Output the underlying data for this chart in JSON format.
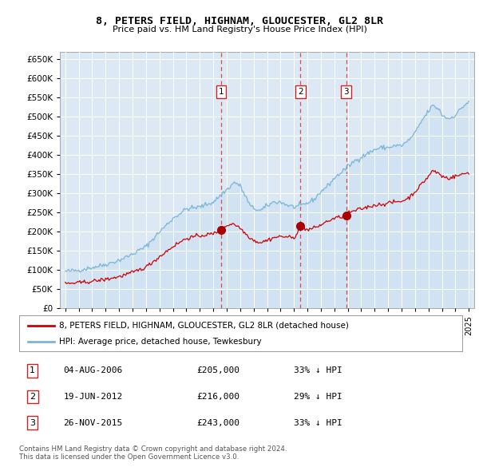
{
  "title": "8, PETERS FIELD, HIGHNAM, GLOUCESTER, GL2 8LR",
  "subtitle": "Price paid vs. HM Land Registry's House Price Index (HPI)",
  "yticks": [
    0,
    50000,
    100000,
    150000,
    200000,
    250000,
    300000,
    350000,
    400000,
    450000,
    500000,
    550000,
    600000,
    650000
  ],
  "xlim_start": 1994.6,
  "xlim_end": 2025.4,
  "ylim": [
    0,
    670000
  ],
  "hpi_color": "#7ab5d8",
  "hpi_fill_color": "#c8dff0",
  "price_color": "#cc0000",
  "sale_marker_color": "#aa0000",
  "sale_year_floats": [
    2006.59,
    2012.47,
    2015.9
  ],
  "sale_prices": [
    205000,
    216000,
    243000
  ],
  "sale_labels": [
    "1",
    "2",
    "3"
  ],
  "legend_property": "8, PETERS FIELD, HIGHNAM, GLOUCESTER, GL2 8LR (detached house)",
  "legend_hpi": "HPI: Average price, detached house, Tewkesbury",
  "table_rows": [
    [
      "1",
      "04-AUG-2006",
      "£205,000",
      "33% ↓ HPI"
    ],
    [
      "2",
      "19-JUN-2012",
      "£216,000",
      "29% ↓ HPI"
    ],
    [
      "3",
      "26-NOV-2015",
      "£243,000",
      "33% ↓ HPI"
    ]
  ],
  "footer": "Contains HM Land Registry data © Crown copyright and database right 2024.\nThis data is licensed under the Open Government Licence v3.0.",
  "plot_bg_color": "#dce9f5",
  "fig_bg_color": "#ffffff"
}
